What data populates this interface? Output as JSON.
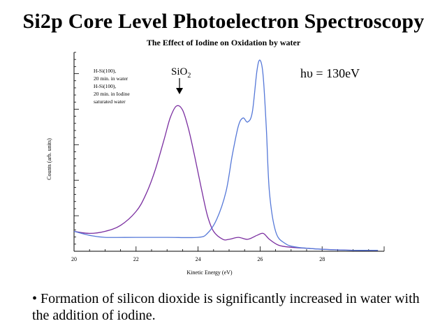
{
  "slide": {
    "title": "Si2p Core Level Photoelectron Spectroscopy",
    "subtitle": "The Effect of Iodine on Oxidation by water",
    "caption": "• Formation of silicon dioxide is significantly increased in water with the addition of iodine."
  },
  "chart_data": {
    "type": "line",
    "xlabel": "Kinetic Energy (eV)",
    "ylabel": "Counts (arb. units)",
    "xlim": [
      20,
      30
    ],
    "x_ticks": [
      "20",
      "22",
      "24",
      "26",
      "28"
    ],
    "grid": false,
    "legend": {
      "placement": "top-left",
      "entries": [
        "H-Si(100),",
        "20 min. in water",
        "H-Si(100),",
        "20 min. in Iodine",
        "saturated water"
      ]
    },
    "annotations": {
      "peak_label_main": "SiO",
      "peak_label_sub": "2",
      "energy_main": "hυ = 130eV"
    },
    "series": [
      {
        "color": "#7a2ea0",
        "x": [
          20.0,
          20.5,
          21.0,
          21.5,
          22.0,
          22.3,
          22.6,
          22.9,
          23.1,
          23.3,
          23.5,
          23.7,
          23.9,
          24.1,
          24.3,
          24.5,
          24.8,
          25.0,
          25.3,
          25.6,
          25.9,
          26.1,
          26.3,
          26.6,
          27.0,
          27.5,
          28.0,
          29.0,
          29.8
        ],
        "y": [
          0.1,
          0.09,
          0.1,
          0.13,
          0.2,
          0.28,
          0.4,
          0.56,
          0.67,
          0.73,
          0.71,
          0.61,
          0.47,
          0.32,
          0.18,
          0.1,
          0.06,
          0.06,
          0.07,
          0.06,
          0.08,
          0.09,
          0.06,
          0.03,
          0.02,
          0.015,
          0.01,
          0.005,
          0.005
        ]
      },
      {
        "color": "#5578d8",
        "x": [
          20.0,
          20.5,
          21.0,
          22.0,
          23.0,
          24.0,
          24.3,
          24.6,
          24.9,
          25.1,
          25.3,
          25.45,
          25.6,
          25.75,
          25.9,
          26.0,
          26.1,
          26.2,
          26.3,
          26.5,
          26.8,
          27.2,
          28.0,
          29.0,
          29.8
        ],
        "y": [
          0.1,
          0.08,
          0.07,
          0.07,
          0.07,
          0.07,
          0.09,
          0.16,
          0.3,
          0.48,
          0.63,
          0.67,
          0.65,
          0.7,
          0.91,
          0.96,
          0.88,
          0.62,
          0.3,
          0.1,
          0.04,
          0.02,
          0.01,
          0.005,
          0.005
        ]
      }
    ]
  }
}
